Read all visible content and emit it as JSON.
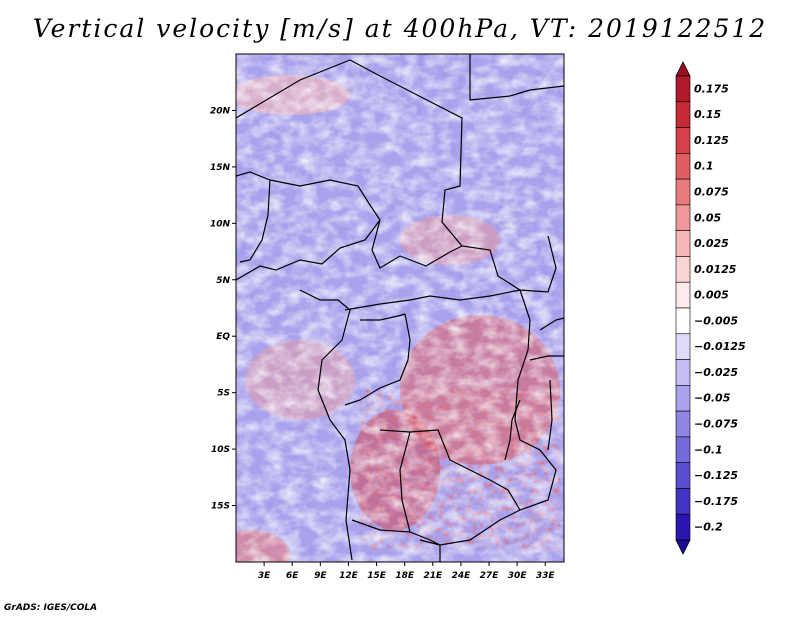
{
  "title": "Vertical velocity [m/s] at 400hPa, VT: 2019122512",
  "credit": "GrADS: IGES/COLA",
  "map": {
    "lon_range": [
      0,
      35
    ],
    "lat_range": [
      -20,
      25
    ],
    "lat_ticks": [
      {
        "value": 20,
        "label": "20N"
      },
      {
        "value": 15,
        "label": "15N"
      },
      {
        "value": 10,
        "label": "10N"
      },
      {
        "value": 5,
        "label": "5N"
      },
      {
        "value": 0,
        "label": "EQ"
      },
      {
        "value": -5,
        "label": "5S"
      },
      {
        "value": -10,
        "label": "10S"
      },
      {
        "value": -15,
        "label": "15S"
      }
    ],
    "lon_ticks": [
      {
        "value": 3,
        "label": "3E"
      },
      {
        "value": 6,
        "label": "6E"
      },
      {
        "value": 9,
        "label": "9E"
      },
      {
        "value": 12,
        "label": "12E"
      },
      {
        "value": 15,
        "label": "15E"
      },
      {
        "value": 18,
        "label": "18E"
      },
      {
        "value": 21,
        "label": "21E"
      },
      {
        "value": 24,
        "label": "24E"
      },
      {
        "value": 27,
        "label": "27E"
      },
      {
        "value": 30,
        "label": "30E"
      },
      {
        "value": 33,
        "label": "33E"
      }
    ]
  },
  "colorbar": {
    "levels": [
      {
        "label": "0.175",
        "color": "#b2182b"
      },
      {
        "label": "0.15",
        "color": "#c42a35"
      },
      {
        "label": "0.125",
        "color": "#d6404a"
      },
      {
        "label": "0.1",
        "color": "#e05d63"
      },
      {
        "label": "0.075",
        "color": "#e8797c"
      },
      {
        "label": "0.05",
        "color": "#f09899"
      },
      {
        "label": "0.025",
        "color": "#f6b8b8"
      },
      {
        "label": "0.0125",
        "color": "#fad3d3"
      },
      {
        "label": "0.005",
        "color": "#fdeaea"
      },
      {
        "label": "−0.005",
        "color": "#ffffff"
      },
      {
        "label": "−0.0125",
        "color": "#dedaf7"
      },
      {
        "label": "−0.025",
        "color": "#c4bef2"
      },
      {
        "label": "−0.05",
        "color": "#a9a2ec"
      },
      {
        "label": "−0.075",
        "color": "#8f86e4"
      },
      {
        "label": "−0.1",
        "color": "#756adb"
      },
      {
        "label": "−0.125",
        "color": "#5b4fd0"
      },
      {
        "label": "−0.175",
        "color": "#4233c3"
      },
      {
        "label": "−0.2",
        "color": "#2a16b0"
      }
    ],
    "top_color": "#9e0f22",
    "bottom_color": "#1a0a9a"
  }
}
